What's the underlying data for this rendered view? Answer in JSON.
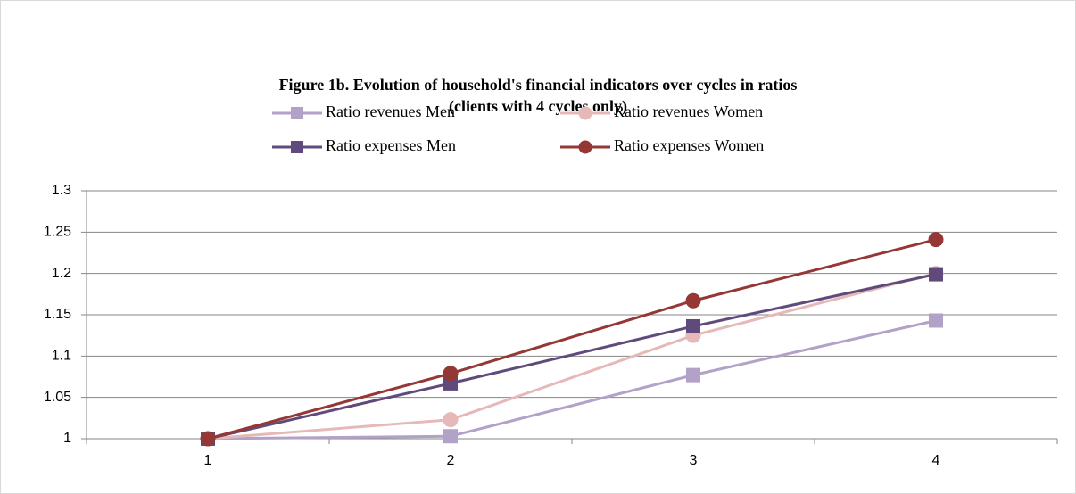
{
  "chart_data": {
    "type": "line",
    "title": "Figure 1b. Evolution of household's financial indicators over cycles in ratios",
    "subtitle": "(clients with 4 cycles only)",
    "categories": [
      "1",
      "2",
      "3",
      "4"
    ],
    "series": [
      {
        "name": "Ratio revenues Men",
        "color": "#b3a2c7",
        "marker": "square",
        "values": [
          1,
          1.003,
          1.077,
          1.143
        ]
      },
      {
        "name": "Ratio revenues Women",
        "color": "#e6b9b8",
        "marker": "circle",
        "values": [
          1,
          1.023,
          1.125,
          1.2
        ]
      },
      {
        "name": "Ratio expenses Men",
        "color": "#604a7b",
        "marker": "square",
        "values": [
          1,
          1.067,
          1.136,
          1.199
        ]
      },
      {
        "name": "Ratio expenses Women",
        "color": "#953735",
        "marker": "circle",
        "values": [
          1,
          1.079,
          1.167,
          1.241
        ]
      }
    ],
    "ylim": [
      1,
      1.3
    ],
    "yticks": [
      1,
      1.05,
      1.1,
      1.15,
      1.2,
      1.25,
      1.3
    ],
    "grid": true,
    "legend": "top"
  }
}
